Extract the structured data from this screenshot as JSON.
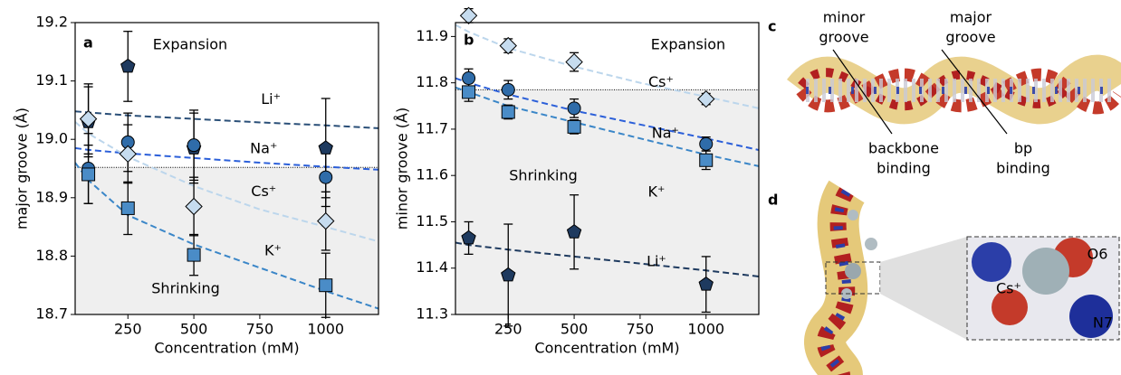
{
  "chart_data": [
    {
      "type": "scatter",
      "panel": "a",
      "xlabel": "Concentration (mM)",
      "ylabel": "major groove (Å)",
      "xlim": [
        50,
        1200
      ],
      "xticks": [
        250,
        500,
        750,
        1000
      ],
      "ylim": [
        18.7,
        19.2
      ],
      "yticks": [
        {
          "value": 18.7,
          "label": "18.7"
        },
        {
          "value": 18.8,
          "label": "18.8"
        },
        {
          "value": 18.9,
          "label": "18.9"
        },
        {
          "value": 19.0,
          "label": "19.0"
        },
        {
          "value": 19.1,
          "label": "19.1"
        },
        {
          "value": 19.2,
          "label": "19.2"
        }
      ],
      "reference": 18.952,
      "annotations": [
        "Expansion",
        "Shrinking"
      ],
      "series": [
        {
          "name": "Li⁺",
          "color": "#1e3a5f",
          "label_color": "#1e3a5f",
          "marker": "pentagon",
          "x": [
            100,
            250,
            500,
            1000
          ],
          "values": [
            19.03,
            19.125,
            18.985,
            18.985
          ],
          "errors": [
            0.06,
            0.06,
            0.06,
            0.085
          ],
          "fit": {
            "color": "#2a4f78",
            "x": [
              50,
              100,
              250,
              500,
              750,
              1000,
              1200
            ],
            "values": [
              19.048,
              19.046,
              19.041,
              19.035,
              19.029,
              19.024,
              19.019
            ]
          }
        },
        {
          "name": "Na⁺",
          "color": "#2f6ca9",
          "label_color": "#2b5fd9",
          "marker": "circle",
          "x": [
            100,
            250,
            500,
            1000
          ],
          "values": [
            18.95,
            18.995,
            18.99,
            18.935
          ],
          "errors": [
            0.06,
            0.05,
            0.06,
            0.05
          ],
          "fit": {
            "color": "#2b5fd9",
            "x": [
              50,
              100,
              250,
              500,
              750,
              1000,
              1200
            ],
            "values": [
              18.985,
              18.982,
              18.976,
              18.968,
              18.96,
              18.953,
              18.948
            ]
          }
        },
        {
          "name": "Cs⁺",
          "color": "#c6dcef",
          "label_color": "#bcd6ec",
          "marker": "diamond",
          "x": [
            100,
            250,
            500,
            1000
          ],
          "values": [
            19.035,
            18.975,
            18.885,
            18.86
          ],
          "errors": [
            0.06,
            0.05,
            0.05,
            0.05
          ],
          "fit": {
            "color": "#bcd6ec",
            "x": [
              50,
              100,
              250,
              500,
              750,
              1000,
              1200
            ],
            "values": [
              19.03,
              19.01,
              18.97,
              18.92,
              18.88,
              18.85,
              18.825
            ]
          }
        },
        {
          "name": "K⁺",
          "color": "#4a8cc7",
          "label_color": "#3a86c8",
          "marker": "square",
          "x": [
            100,
            250,
            500,
            1000
          ],
          "values": [
            18.94,
            18.882,
            18.802,
            18.75
          ],
          "errors": [
            0.05,
            0.045,
            0.035,
            0.055
          ],
          "fit": {
            "color": "#3a86c8",
            "x": [
              50,
              100,
              250,
              500,
              750,
              1000,
              1200
            ],
            "values": [
              18.96,
              18.93,
              18.87,
              18.82,
              18.78,
              18.74,
              18.71
            ]
          }
        }
      ]
    },
    {
      "type": "scatter",
      "panel": "b",
      "xlabel": "Concentration (mM)",
      "ylabel": "minor groove (Å)",
      "xlim": [
        50,
        1200
      ],
      "xticks": [
        250,
        500,
        750,
        1000
      ],
      "ylim": [
        11.3,
        11.93
      ],
      "yticks": [
        {
          "value": 11.3,
          "label": "11.3"
        },
        {
          "value": 11.4,
          "label": "11.4"
        },
        {
          "value": 11.5,
          "label": "11.5"
        },
        {
          "value": 11.6,
          "label": "11.6"
        },
        {
          "value": 11.7,
          "label": "11.7"
        },
        {
          "value": 11.8,
          "label": "11.8"
        },
        {
          "value": 11.9,
          "label": "11.9"
        }
      ],
      "reference": 11.785,
      "annotations": [
        "Expansion",
        "Shrinking"
      ],
      "series": [
        {
          "name": "Cs⁺",
          "color": "#c6dcef",
          "label_color": "#bcd6ec",
          "marker": "diamond",
          "x": [
            100,
            250,
            500,
            1000
          ],
          "values": [
            11.945,
            11.88,
            11.845,
            11.765
          ],
          "errors": [
            0.015,
            0.015,
            0.02,
            0.012
          ],
          "fit": {
            "color": "#bcd6ec",
            "x": [
              50,
              100,
              250,
              500,
              750,
              1000,
              1200
            ],
            "values": [
              11.925,
              11.91,
              11.875,
              11.835,
              11.8,
              11.77,
              11.745
            ]
          }
        },
        {
          "name": "Na⁺",
          "color": "#2f6ca9",
          "label_color": "#2b5fd9",
          "marker": "circle",
          "x": [
            100,
            250,
            500,
            1000
          ],
          "values": [
            11.81,
            11.785,
            11.745,
            11.668
          ],
          "errors": [
            0.02,
            0.02,
            0.02,
            0.015
          ],
          "fit": {
            "color": "#2b5fd9",
            "x": [
              50,
              100,
              250,
              500,
              750,
              1000,
              1200
            ],
            "values": [
              11.81,
              11.8,
              11.775,
              11.74,
              11.71,
              11.68,
              11.655
            ]
          }
        },
        {
          "name": "K⁺",
          "color": "#4a8cc7",
          "label_color": "#3a86c8",
          "marker": "square",
          "x": [
            100,
            250,
            500,
            1000
          ],
          "values": [
            11.78,
            11.737,
            11.705,
            11.633
          ],
          "errors": [
            0.02,
            0.015,
            0.015,
            0.02
          ],
          "fit": {
            "color": "#3a86c8",
            "x": [
              50,
              100,
              250,
              500,
              750,
              1000,
              1200
            ],
            "values": [
              11.79,
              11.78,
              11.75,
              11.715,
              11.68,
              11.645,
              11.62
            ]
          }
        },
        {
          "name": "Li⁺",
          "color": "#1e3a5f",
          "label_color": "#1e3a5f",
          "marker": "pentagon",
          "x": [
            100,
            250,
            500,
            1000
          ],
          "values": [
            11.465,
            11.385,
            11.478,
            11.365
          ],
          "errors": [
            0.035,
            0.11,
            0.08,
            0.06
          ],
          "fit": {
            "color": "#1e3a5f",
            "x": [
              50,
              100,
              250,
              500,
              750,
              1000,
              1200
            ],
            "values": [
              11.455,
              11.45,
              11.44,
              11.425,
              11.41,
              11.395,
              11.382
            ]
          }
        }
      ]
    }
  ],
  "panel_c": {
    "label": "c",
    "minor_groove": [
      "minor",
      "groove"
    ],
    "major_groove": [
      "major",
      "groove"
    ],
    "backbone_binding": [
      "backbone",
      "binding"
    ],
    "bp_binding": [
      "bp",
      "binding"
    ]
  },
  "panel_d": {
    "label": "d",
    "atoms": [
      "O6",
      "Cs⁺",
      "N7"
    ]
  }
}
